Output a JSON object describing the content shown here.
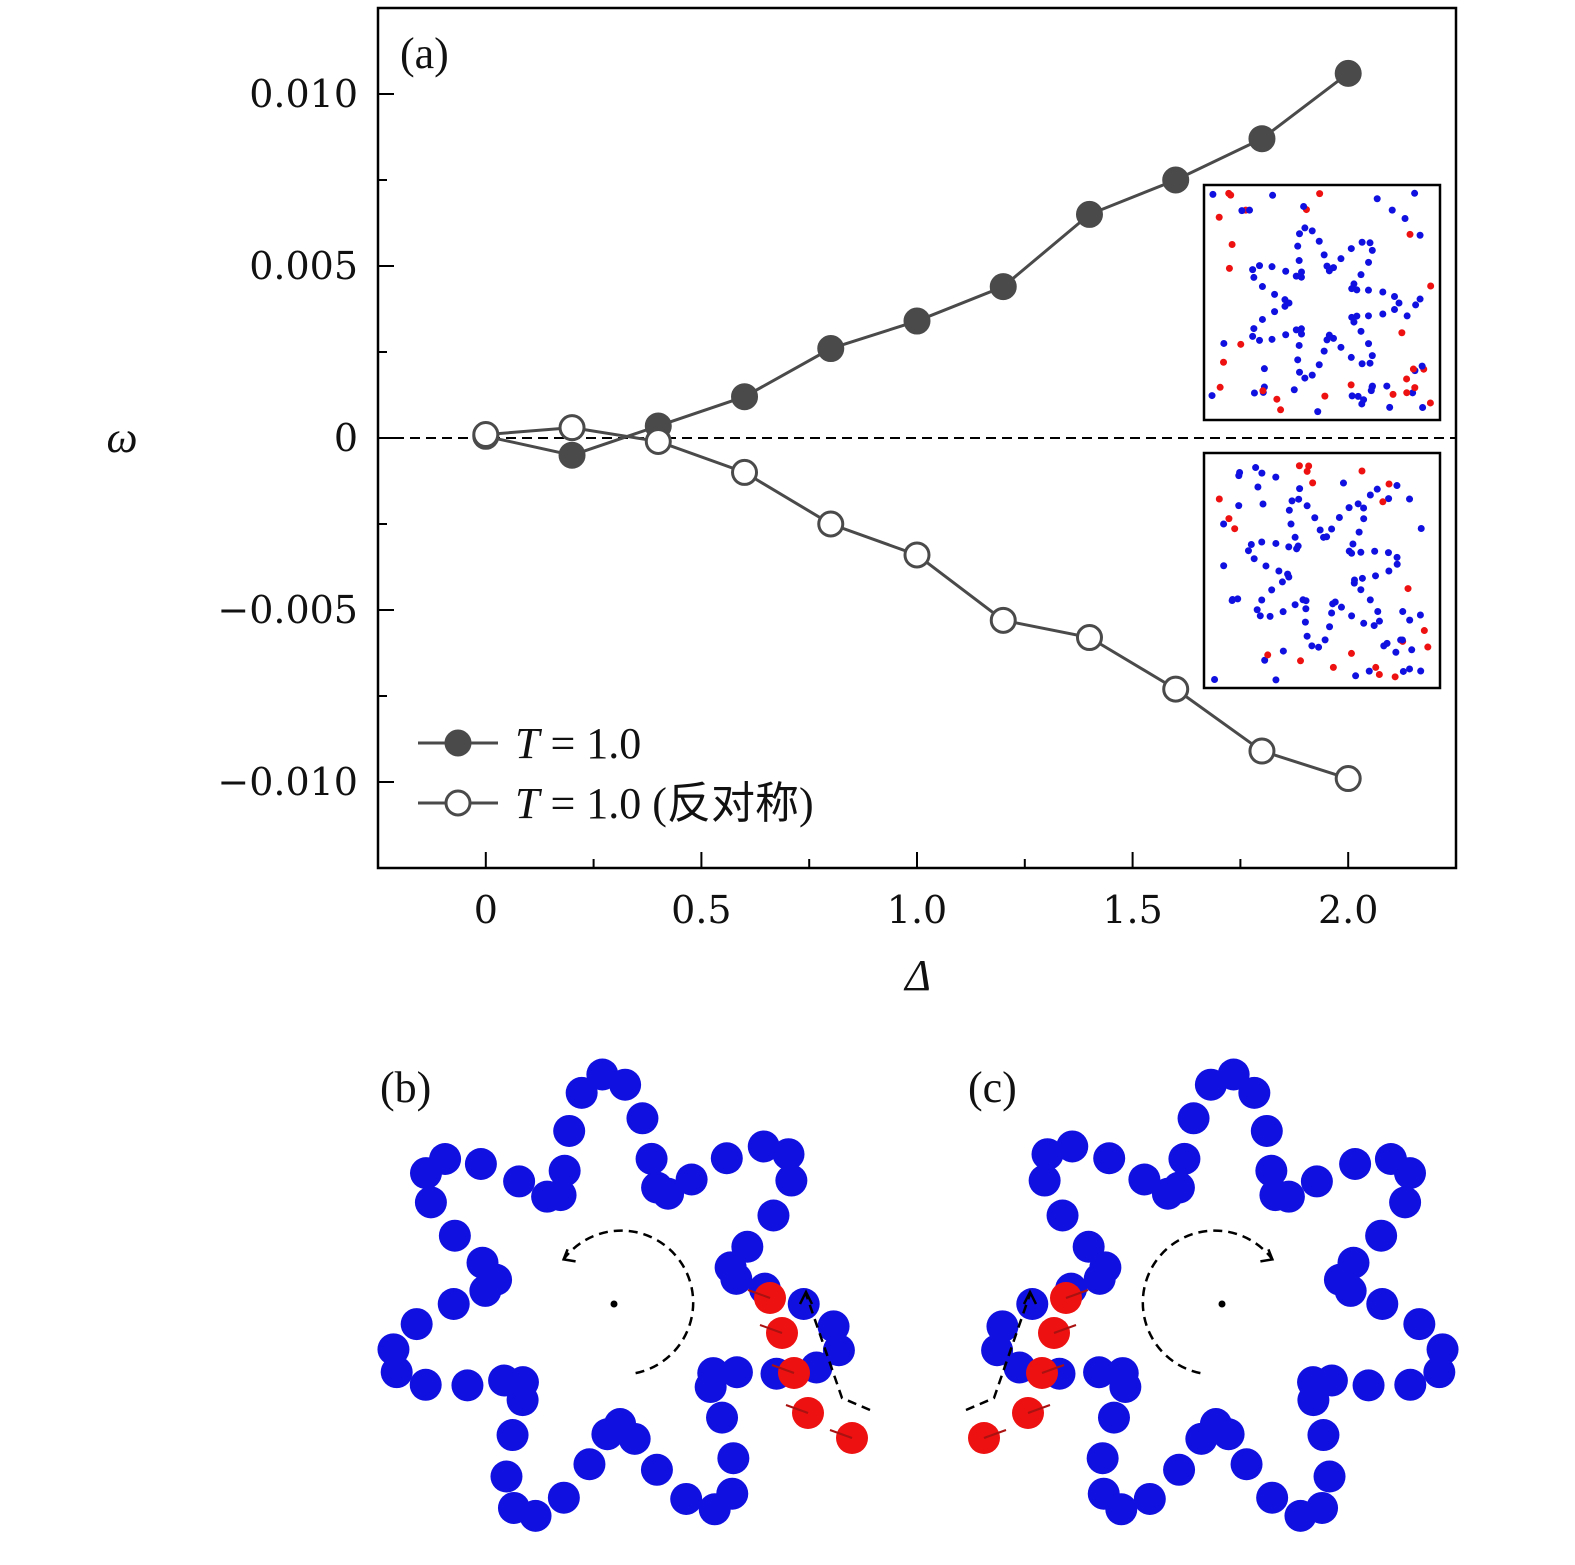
{
  "chart_data": {
    "type": "line",
    "panel_label": "(a)",
    "xlabel": "Δ",
    "ylabel": "ω",
    "xlim": [
      -0.25,
      2.25
    ],
    "ylim": [
      -0.0125,
      0.0125
    ],
    "xticks": [
      0,
      0.5,
      1.0,
      1.5,
      2.0
    ],
    "xtick_labels": [
      "0",
      "0.5",
      "1.0",
      "1.5",
      "2.0"
    ],
    "yticks": [
      0.01,
      0.005,
      0,
      -0.005,
      -0.01
    ],
    "ytick_labels": [
      "0.010",
      "0.005",
      "0",
      "−0.005",
      "−0.010"
    ],
    "grid": false,
    "reference_line": {
      "y": 0,
      "style": "dashed"
    },
    "legend_position": "bottom-left",
    "x": [
      0,
      0.2,
      0.4,
      0.6,
      0.8,
      1.0,
      1.2,
      1.4,
      1.6,
      1.8,
      2.0
    ],
    "series": [
      {
        "name": "T = 1.0",
        "legend_italic": "T",
        "legend_rest": " = 1.0",
        "marker": "filled-circle",
        "color": "#4a4a4a",
        "values": [
          5e-05,
          -0.0005,
          0.00035,
          0.0012,
          0.0026,
          0.0034,
          0.0044,
          0.0065,
          0.0075,
          0.0087,
          0.0106
        ]
      },
      {
        "name": "T = 1.0 (反对称)",
        "legend_italic": "T",
        "legend_rest": " = 1.0 (反对称)",
        "marker": "open-circle",
        "color": "#4a4a4a",
        "values": [
          0.0001,
          0.0003,
          -0.0001,
          -0.001,
          -0.0025,
          -0.0034,
          -0.0053,
          -0.0058,
          -0.0073,
          -0.0091,
          -0.0099
        ]
      }
    ]
  },
  "panels": {
    "b_label": "(b)",
    "c_label": "(c)",
    "colors": {
      "chain": "#1010e0",
      "particle": "#ee1111",
      "arrow": "#aa1111"
    }
  }
}
